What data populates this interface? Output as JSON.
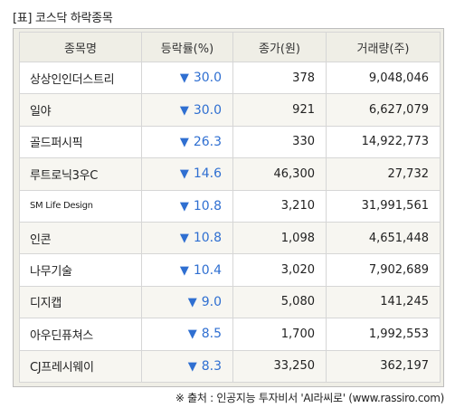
{
  "title": "[표] 코스닥 하락종목",
  "table": {
    "headers": [
      "종목명",
      "등락률(%)",
      "종가(원)",
      "거래량(주)"
    ],
    "rows": [
      {
        "name": "상상인인더스트리",
        "rate": "30.0",
        "price": "378",
        "volume": "9,048,046"
      },
      {
        "name": "일야",
        "rate": "30.0",
        "price": "921",
        "volume": "6,627,079"
      },
      {
        "name": "골드퍼시픽",
        "rate": "26.3",
        "price": "330",
        "volume": "14,922,773"
      },
      {
        "name": "루트로닉3우C",
        "rate": "14.6",
        "price": "46,300",
        "volume": "27,732"
      },
      {
        "name": "SM Life Design",
        "rate": "10.8",
        "price": "3,210",
        "volume": "31,991,561"
      },
      {
        "name": "인콘",
        "rate": "10.8",
        "price": "1,098",
        "volume": "4,651,448"
      },
      {
        "name": "나무기술",
        "rate": "10.4",
        "price": "3,020",
        "volume": "7,902,689"
      },
      {
        "name": "디지캡",
        "rate": "9.0",
        "price": "5,080",
        "volume": "141,245"
      },
      {
        "name": "아우딘퓨쳐스",
        "rate": "8.5",
        "price": "1,700",
        "volume": "1,992,553"
      },
      {
        "name": "CJ프레시웨이",
        "rate": "8.3",
        "price": "33,250",
        "volume": "362,197"
      }
    ]
  },
  "down_symbol": "▼",
  "source": "※ 출처 : 인공지능 투자비서 'AI라씨로' (www.rassiro.com)",
  "colors": {
    "down": "#2f6fd1",
    "header_bg": "#efeee6",
    "alt_row_bg": "#f7f6f1"
  }
}
